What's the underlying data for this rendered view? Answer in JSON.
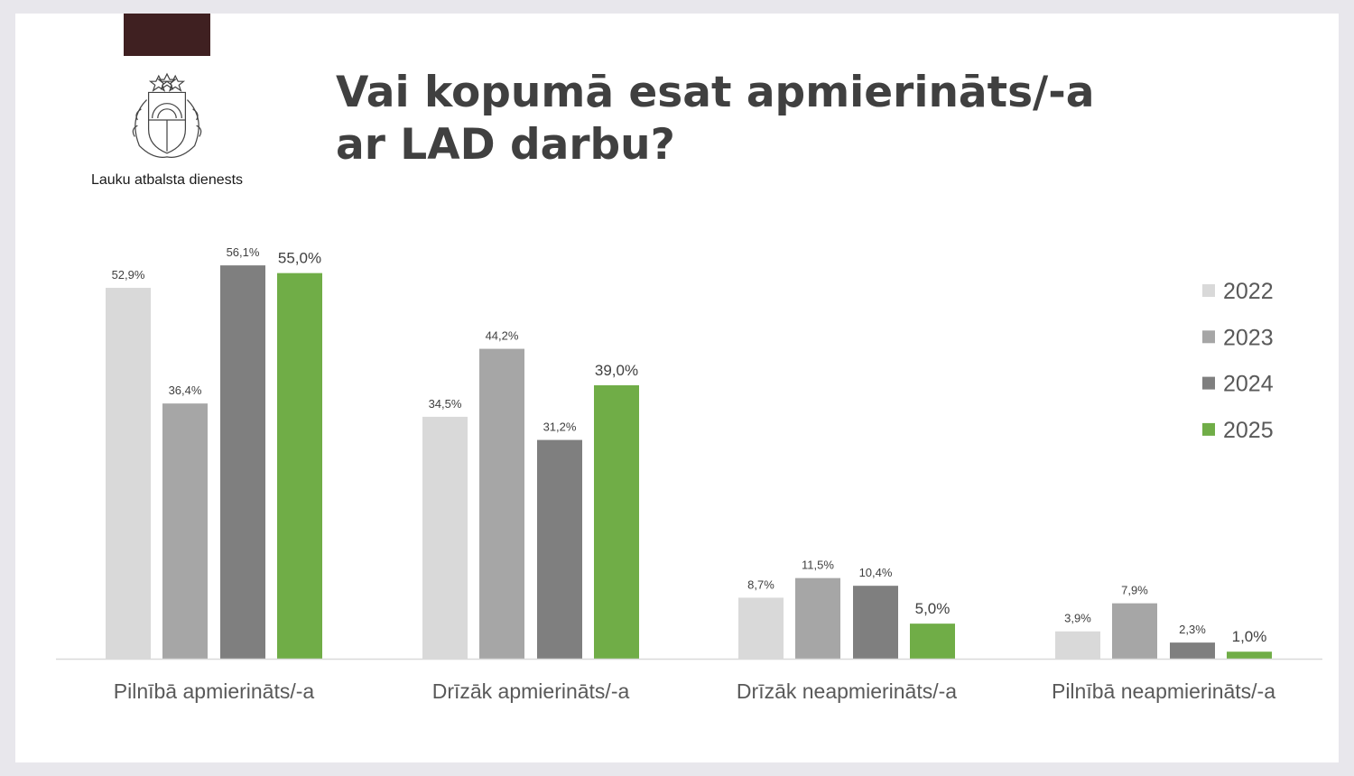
{
  "header": {
    "org_name": "Lauku atbalsta dienests",
    "title_line1": "Vai kopumā esat apmierināts/-a",
    "title_line2": "ar LAD darbu?",
    "brand_color": "#3f2021",
    "logo_icon": "latvia-coat-of-arms-icon"
  },
  "chart_data": {
    "type": "bar",
    "categories": [
      "Pilnībā apmierināts/-a",
      "Drīzāk apmierināts/-a",
      "Drīzāk neapmierināts/-a",
      "Pilnībā neapmierināts/-a"
    ],
    "series": [
      {
        "name": "2022",
        "color": "#d9d9d9",
        "values": [
          52.9,
          34.5,
          8.7,
          3.9
        ],
        "labels": [
          "52,9%",
          "34,5%",
          "8,7%",
          "3,9%"
        ]
      },
      {
        "name": "2023",
        "color": "#a6a6a6",
        "values": [
          36.4,
          44.2,
          11.5,
          7.9
        ],
        "labels": [
          "36,4%",
          "44,2%",
          "11,5%",
          "7,9%"
        ]
      },
      {
        "name": "2024",
        "color": "#7f7f7f",
        "values": [
          56.1,
          31.2,
          10.4,
          2.3
        ],
        "labels": [
          "56,1%",
          "31,2%",
          "10,4%",
          "2,3%"
        ]
      },
      {
        "name": "2025",
        "color": "#70ad47",
        "values": [
          55.0,
          39.0,
          5.0,
          1.0
        ],
        "labels": [
          "55,0%",
          "39,0%",
          "5,0%",
          "1,0%"
        ]
      }
    ],
    "unit": "%",
    "legend_position": "right",
    "grid": false,
    "ylim": [
      0,
      60
    ]
  }
}
